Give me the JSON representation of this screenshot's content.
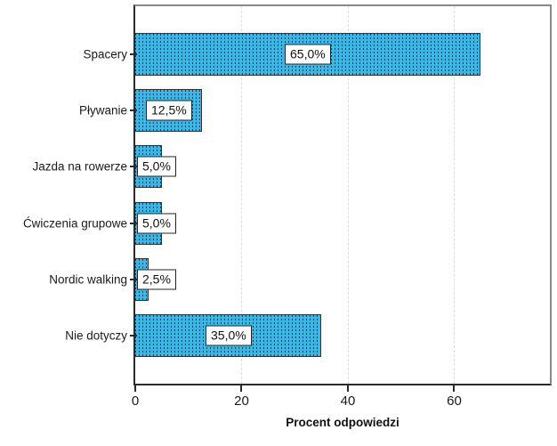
{
  "chart_data": {
    "type": "bar",
    "orientation": "horizontal",
    "title": "",
    "xlabel": "Procent odpowiedzi",
    "ylabel": "",
    "categories": [
      "Spacery",
      "Pływanie",
      "Jazda na rowerze",
      "Ćwiczenia grupowe",
      "Nordic walking",
      "Nie dotyczy"
    ],
    "values": [
      65.0,
      12.5,
      5.0,
      5.0,
      2.5,
      35.0
    ],
    "value_labels": [
      "65,0%",
      "12,5%",
      "5,0%",
      "5,0%",
      "2,5%",
      "35,0%"
    ],
    "xlim": [
      0,
      78
    ],
    "xticks": [
      0,
      20,
      40,
      60
    ],
    "xtick_labels": [
      "0",
      "20",
      "40",
      "60"
    ],
    "grid": "vertical-dashed",
    "legend": "none",
    "colors": {
      "bar_fill": "#2bbdee",
      "bar_pattern_dot": "#1c3a57",
      "bar_border": "#333333",
      "axis_color": "#2b2b2b",
      "frame_color": "#8a8a8a",
      "gridline_color": "#dcdcdc",
      "label_box_bg": "#ffffff",
      "label_box_border": "#262626"
    }
  }
}
